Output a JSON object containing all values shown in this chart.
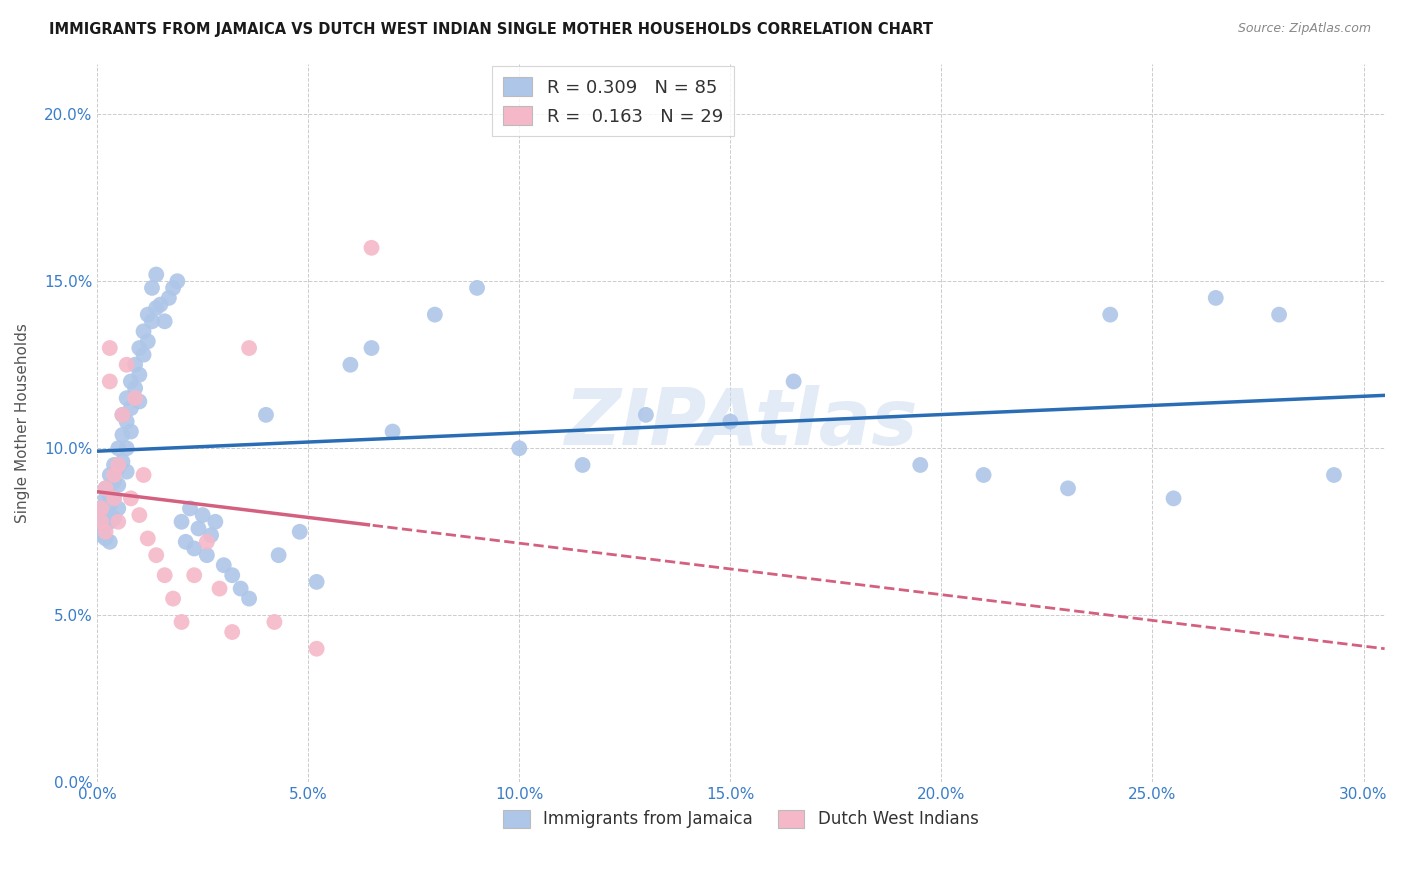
{
  "title": "IMMIGRANTS FROM JAMAICA VS DUTCH WEST INDIAN SINGLE MOTHER HOUSEHOLDS CORRELATION CHART",
  "source": "Source: ZipAtlas.com",
  "ylabel": "Single Mother Households",
  "xlim": [
    0.0,
    0.305
  ],
  "ylim": [
    0.0,
    0.215
  ],
  "xticks": [
    0.0,
    0.05,
    0.1,
    0.15,
    0.2,
    0.25,
    0.3
  ],
  "yticks": [
    0.0,
    0.05,
    0.1,
    0.15,
    0.2
  ],
  "blue_R": 0.309,
  "blue_N": 85,
  "pink_R": 0.163,
  "pink_N": 29,
  "blue_color": "#aec6e8",
  "pink_color": "#f5b8c8",
  "blue_line_color": "#2b6db5",
  "pink_line_color": "#d46080",
  "blue_label": "Immigrants from Jamaica",
  "pink_label": "Dutch West Indians",
  "watermark": "ZIPAtlas",
  "blue_x": [
    0.001,
    0.001,
    0.001,
    0.001,
    0.002,
    0.002,
    0.002,
    0.002,
    0.002,
    0.003,
    0.003,
    0.003,
    0.003,
    0.003,
    0.004,
    0.004,
    0.004,
    0.004,
    0.005,
    0.005,
    0.005,
    0.005,
    0.006,
    0.006,
    0.006,
    0.007,
    0.007,
    0.007,
    0.007,
    0.008,
    0.008,
    0.008,
    0.009,
    0.009,
    0.01,
    0.01,
    0.01,
    0.011,
    0.011,
    0.012,
    0.012,
    0.013,
    0.013,
    0.014,
    0.014,
    0.015,
    0.016,
    0.017,
    0.018,
    0.019,
    0.02,
    0.021,
    0.022,
    0.023,
    0.024,
    0.025,
    0.026,
    0.027,
    0.028,
    0.03,
    0.032,
    0.034,
    0.036,
    0.04,
    0.043,
    0.048,
    0.052,
    0.06,
    0.065,
    0.07,
    0.08,
    0.09,
    0.1,
    0.115,
    0.13,
    0.15,
    0.165,
    0.195,
    0.21,
    0.23,
    0.24,
    0.255,
    0.265,
    0.28,
    0.293
  ],
  "blue_y": [
    0.082,
    0.079,
    0.076,
    0.074,
    0.088,
    0.085,
    0.08,
    0.077,
    0.073,
    0.092,
    0.086,
    0.083,
    0.078,
    0.072,
    0.095,
    0.09,
    0.085,
    0.079,
    0.1,
    0.094,
    0.089,
    0.082,
    0.11,
    0.104,
    0.096,
    0.115,
    0.108,
    0.1,
    0.093,
    0.12,
    0.112,
    0.105,
    0.125,
    0.118,
    0.13,
    0.122,
    0.114,
    0.135,
    0.128,
    0.14,
    0.132,
    0.148,
    0.138,
    0.152,
    0.142,
    0.143,
    0.138,
    0.145,
    0.148,
    0.15,
    0.078,
    0.072,
    0.082,
    0.07,
    0.076,
    0.08,
    0.068,
    0.074,
    0.078,
    0.065,
    0.062,
    0.058,
    0.055,
    0.11,
    0.068,
    0.075,
    0.06,
    0.125,
    0.13,
    0.105,
    0.14,
    0.148,
    0.1,
    0.095,
    0.11,
    0.108,
    0.12,
    0.095,
    0.092,
    0.088,
    0.14,
    0.085,
    0.145,
    0.14,
    0.092
  ],
  "pink_x": [
    0.001,
    0.001,
    0.002,
    0.002,
    0.003,
    0.003,
    0.004,
    0.004,
    0.005,
    0.005,
    0.006,
    0.007,
    0.008,
    0.009,
    0.01,
    0.011,
    0.012,
    0.014,
    0.016,
    0.018,
    0.02,
    0.023,
    0.026,
    0.029,
    0.032,
    0.036,
    0.042,
    0.052,
    0.065
  ],
  "pink_y": [
    0.082,
    0.078,
    0.088,
    0.075,
    0.13,
    0.12,
    0.092,
    0.085,
    0.095,
    0.078,
    0.11,
    0.125,
    0.085,
    0.115,
    0.08,
    0.092,
    0.073,
    0.068,
    0.062,
    0.055,
    0.048,
    0.062,
    0.072,
    0.058,
    0.045,
    0.13,
    0.048,
    0.04,
    0.16
  ]
}
